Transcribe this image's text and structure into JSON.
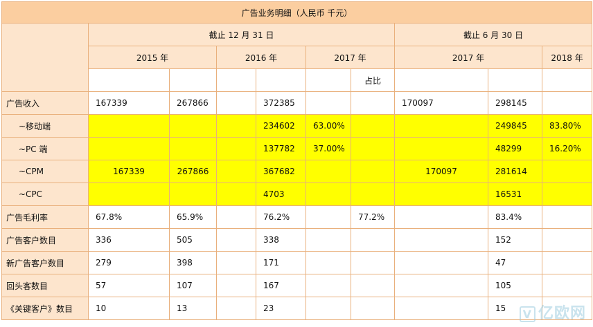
{
  "title": "广告业务明细（人民币  千元）",
  "period_headers": [
    "截止 12 月 31 日",
    "截止 6 月 30 日"
  ],
  "year_headers": [
    "2015 年",
    "2016 年",
    "2017 年",
    "2017 年",
    "2018 年"
  ],
  "share_label": "占比",
  "rows": [
    {
      "label": "广告收入",
      "sub": false,
      "yellow": false,
      "cells": [
        "167339",
        "",
        "267866",
        "",
        "372385",
        "",
        "",
        "170097",
        "298145",
        ""
      ]
    },
    {
      "label": "~移动端",
      "sub": true,
      "yellow": true,
      "cells": [
        "",
        "",
        "",
        "",
        "234602",
        "63.00%",
        "",
        "",
        "249845",
        "83.80%"
      ]
    },
    {
      "label": "~PC 端",
      "sub": true,
      "yellow": true,
      "cells": [
        "",
        "",
        "",
        "",
        "137782",
        "37.00%",
        "",
        "",
        "48299",
        "16.20%"
      ]
    },
    {
      "label": "~CPM",
      "sub": true,
      "yellow": true,
      "cells": [
        "167339",
        "",
        "267866",
        "",
        "367682",
        "",
        "",
        "170097",
        "281614",
        ""
      ]
    },
    {
      "label": "~CPC",
      "sub": true,
      "yellow": true,
      "cells": [
        "",
        "",
        "",
        "",
        "4703",
        "",
        "",
        "",
        "16531",
        ""
      ]
    },
    {
      "label": "广告毛利率",
      "sub": false,
      "yellow": false,
      "cells": [
        "67.8%",
        "",
        "65.9%",
        "",
        "76.2%",
        "",
        "77.2%",
        "",
        "83.4%",
        ""
      ]
    },
    {
      "label": "广告客户数目",
      "sub": false,
      "yellow": false,
      "cells": [
        "336",
        "",
        "505",
        "",
        "338",
        "",
        "",
        "",
        "152",
        ""
      ]
    },
    {
      "label": "新广告客户数目",
      "sub": false,
      "yellow": false,
      "cells": [
        "279",
        "",
        "398",
        "",
        "171",
        "",
        "",
        "",
        "47",
        ""
      ]
    },
    {
      "label": "回头客数目",
      "sub": false,
      "yellow": false,
      "cells": [
        "57",
        "",
        "107",
        "",
        "167",
        "",
        "",
        "",
        "105",
        ""
      ]
    },
    {
      "label": "《关键客户》数目",
      "sub": false,
      "yellow": false,
      "cells": [
        "10",
        "",
        "13",
        "",
        "23",
        "",
        "",
        "",
        "15",
        ""
      ]
    }
  ],
  "watermark": {
    "badge": "V",
    "text": "亿欧网"
  }
}
